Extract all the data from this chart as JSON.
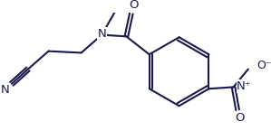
{
  "bg_color": "#ffffff",
  "line_color": "#1a1a4e",
  "lw": 1.5,
  "figsize": [
    2.99,
    1.55
  ],
  "dpi": 100,
  "xlim": [
    0,
    299
  ],
  "ylim": [
    0,
    155
  ]
}
